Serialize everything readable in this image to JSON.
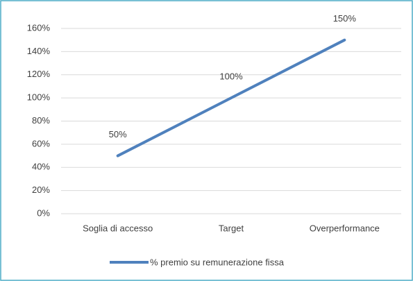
{
  "chart_data": {
    "type": "line",
    "categories": [
      "Soglia di accesso",
      "Target",
      "Overperformance"
    ],
    "series": [
      {
        "name": "% premio su remunerazione fissa",
        "color": "#4f81bd",
        "values": [
          50,
          100,
          150
        ],
        "value_labels": [
          "50%",
          "100%",
          "150%"
        ]
      }
    ],
    "ylim": [
      0,
      160
    ],
    "yticks": [
      {
        "value": 0,
        "label": "0%"
      },
      {
        "value": 20,
        "label": "20%"
      },
      {
        "value": 40,
        "label": "40%"
      },
      {
        "value": 60,
        "label": "60%"
      },
      {
        "value": 80,
        "label": "80%"
      },
      {
        "value": 100,
        "label": "100%"
      },
      {
        "value": 120,
        "label": "120%"
      },
      {
        "value": 140,
        "label": "140%"
      },
      {
        "value": 160,
        "label": "160%"
      }
    ],
    "grid": true,
    "legend": "bottom"
  }
}
